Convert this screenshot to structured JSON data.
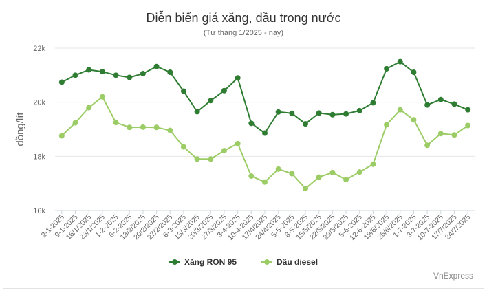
{
  "chart_data": {
    "type": "line",
    "title": "Diễn biến giá xăng, dầu trong nước",
    "subtitle": "(Từ tháng 1/2025 - nay)",
    "xlabel": "",
    "ylabel": "đồng/lít",
    "ylim": [
      16000,
      22000
    ],
    "yticks": [
      16000,
      18000,
      20000,
      22000
    ],
    "ytick_labels": [
      "16k",
      "18k",
      "20k",
      "22k"
    ],
    "grid": "horizontal",
    "legend_position": "bottom-center",
    "categories": [
      "2-1-2025",
      "9-1-2025",
      "16/1/2025",
      "23/1/2025",
      "1-2-2025",
      "6-2-2025",
      "13/2/2025",
      "20/2/2025",
      "27/2/2025",
      "6-3-2025",
      "13/3/2025",
      "20/3/2025",
      "27/3/2025",
      "3-4-2025",
      "10-4-2025",
      "17/4/2025",
      "24/4/2025",
      "5-5-2025",
      "8-5-2025",
      "15/5/2025",
      "22/5/2025",
      "29/5/2025",
      "5-6-2025",
      "12-6-2025",
      "19/6/2025",
      "26/6/2025",
      "1-7-2025",
      "3-7-2025",
      "10-7-2025",
      "17/7/2025",
      "24/7/2025"
    ],
    "series": [
      {
        "name": "Xăng RON 95",
        "color": "#2e7d32",
        "values": [
          20740,
          21000,
          21200,
          21130,
          21000,
          20920,
          21060,
          21320,
          21110,
          20410,
          19650,
          20060,
          20430,
          20900,
          19220,
          18860,
          19640,
          19590,
          19200,
          19600,
          19540,
          19570,
          19690,
          19980,
          21240,
          21500,
          21110,
          19900,
          20100,
          19930,
          19720
        ]
      },
      {
        "name": "Dầu diesel",
        "color": "#9ccc65",
        "values": [
          18760,
          19240,
          19800,
          20200,
          19250,
          19070,
          19080,
          19070,
          18960,
          18350,
          17900,
          17900,
          18210,
          18470,
          17270,
          17050,
          17530,
          17360,
          16810,
          17230,
          17400,
          17140,
          17420,
          17710,
          19170,
          19720,
          19350,
          18410,
          18840,
          18790,
          19140
        ]
      }
    ]
  },
  "credit": "VnExpress"
}
